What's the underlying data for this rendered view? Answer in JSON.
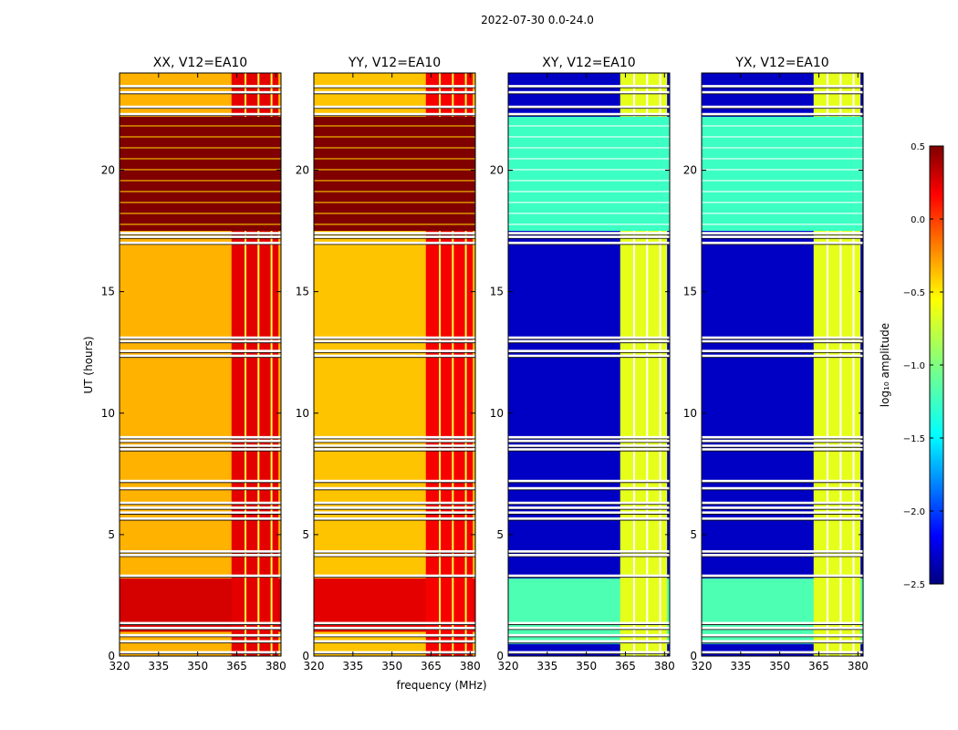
{
  "figure": {
    "suptitle": "2022-07-30 0.0-24.0"
  },
  "chart_data": [
    {
      "type": "heatmap",
      "title": "XX, V12=EA10",
      "xlabel": "",
      "ylabel": "UT (hours)",
      "xlim": [
        320,
        382
      ],
      "ylim": [
        0,
        24
      ],
      "xticks": [
        "320",
        "335",
        "350",
        "365",
        "380"
      ],
      "yticks": [
        "0",
        "5",
        "10",
        "15",
        "20"
      ],
      "colormap": "jet",
      "value_levels": {
        "low_band": -0.4,
        "high_band": 0.2,
        "saturated_block": 0.5
      },
      "high_band_freq_mhz": [
        363,
        381
      ],
      "saturated_hours": [
        17.5,
        22.2
      ],
      "bright_hours": [
        1.0,
        3.2
      ]
    },
    {
      "type": "heatmap",
      "title": "YY, V12=EA10",
      "xlabel": "frequency (MHz)",
      "ylabel": "",
      "xlim": [
        320,
        382
      ],
      "ylim": [
        0,
        24
      ],
      "xticks": [
        "320",
        "335",
        "350",
        "365",
        "380"
      ],
      "yticks": [
        "0",
        "5",
        "10",
        "15",
        "20"
      ],
      "colormap": "jet",
      "value_levels": {
        "low_band": -0.45,
        "high_band": 0.15,
        "saturated_block": 0.5
      },
      "high_band_freq_mhz": [
        363,
        381
      ],
      "saturated_hours": [
        17.5,
        22.2
      ],
      "bright_hours": [
        1.0,
        3.2
      ]
    },
    {
      "type": "heatmap",
      "title": "XY, V12=EA10",
      "xlabel": "",
      "ylabel": "",
      "xlim": [
        320,
        382
      ],
      "ylim": [
        0,
        24
      ],
      "xticks": [
        "320",
        "335",
        "350",
        "365",
        "380"
      ],
      "yticks": [
        "0",
        "5",
        "10",
        "15",
        "20"
      ],
      "colormap": "jet",
      "value_levels": {
        "low_band": -2.3,
        "high_band": -0.7,
        "noisy_block": -1.2
      },
      "high_band_freq_mhz": [
        363,
        381
      ],
      "saturated_hours": [
        17.5,
        22.2
      ],
      "bright_hours": [
        0.5,
        3.2
      ]
    },
    {
      "type": "heatmap",
      "title": "YX, V12=EA10",
      "xlabel": "",
      "ylabel": "",
      "xlim": [
        320,
        382
      ],
      "ylim": [
        0,
        24
      ],
      "xticks": [
        "320",
        "335",
        "350",
        "365",
        "380"
      ],
      "yticks": [
        "0",
        "5",
        "10",
        "15",
        "20"
      ],
      "colormap": "jet",
      "value_levels": {
        "low_band": -2.3,
        "high_band": -0.7,
        "noisy_block": -1.2
      },
      "high_band_freq_mhz": [
        363,
        381
      ],
      "saturated_hours": [
        17.5,
        22.2
      ],
      "bright_hours": [
        0.5,
        3.2
      ]
    }
  ],
  "flagged_hours": [
    0.15,
    0.6,
    0.85,
    1.15,
    1.35,
    3.3,
    4.15,
    4.3,
    5.65,
    5.9,
    6.1,
    6.3,
    6.9,
    7.2,
    8.5,
    8.65,
    8.85,
    9.0,
    12.35,
    12.55,
    12.95,
    13.1,
    17.0,
    17.25,
    17.4,
    22.3,
    22.6,
    23.2,
    23.45
  ],
  "colorbar": {
    "label": "log₁₀ amplitude",
    "range": [
      -2.5,
      0.5
    ],
    "ticks": [
      "−2.5",
      "−2.0",
      "−1.5",
      "−1.0",
      "−0.5",
      "0.0",
      "0.5"
    ],
    "tick_values": [
      -2.5,
      -2.0,
      -1.5,
      -1.0,
      -0.5,
      0.0,
      0.5
    ]
  }
}
